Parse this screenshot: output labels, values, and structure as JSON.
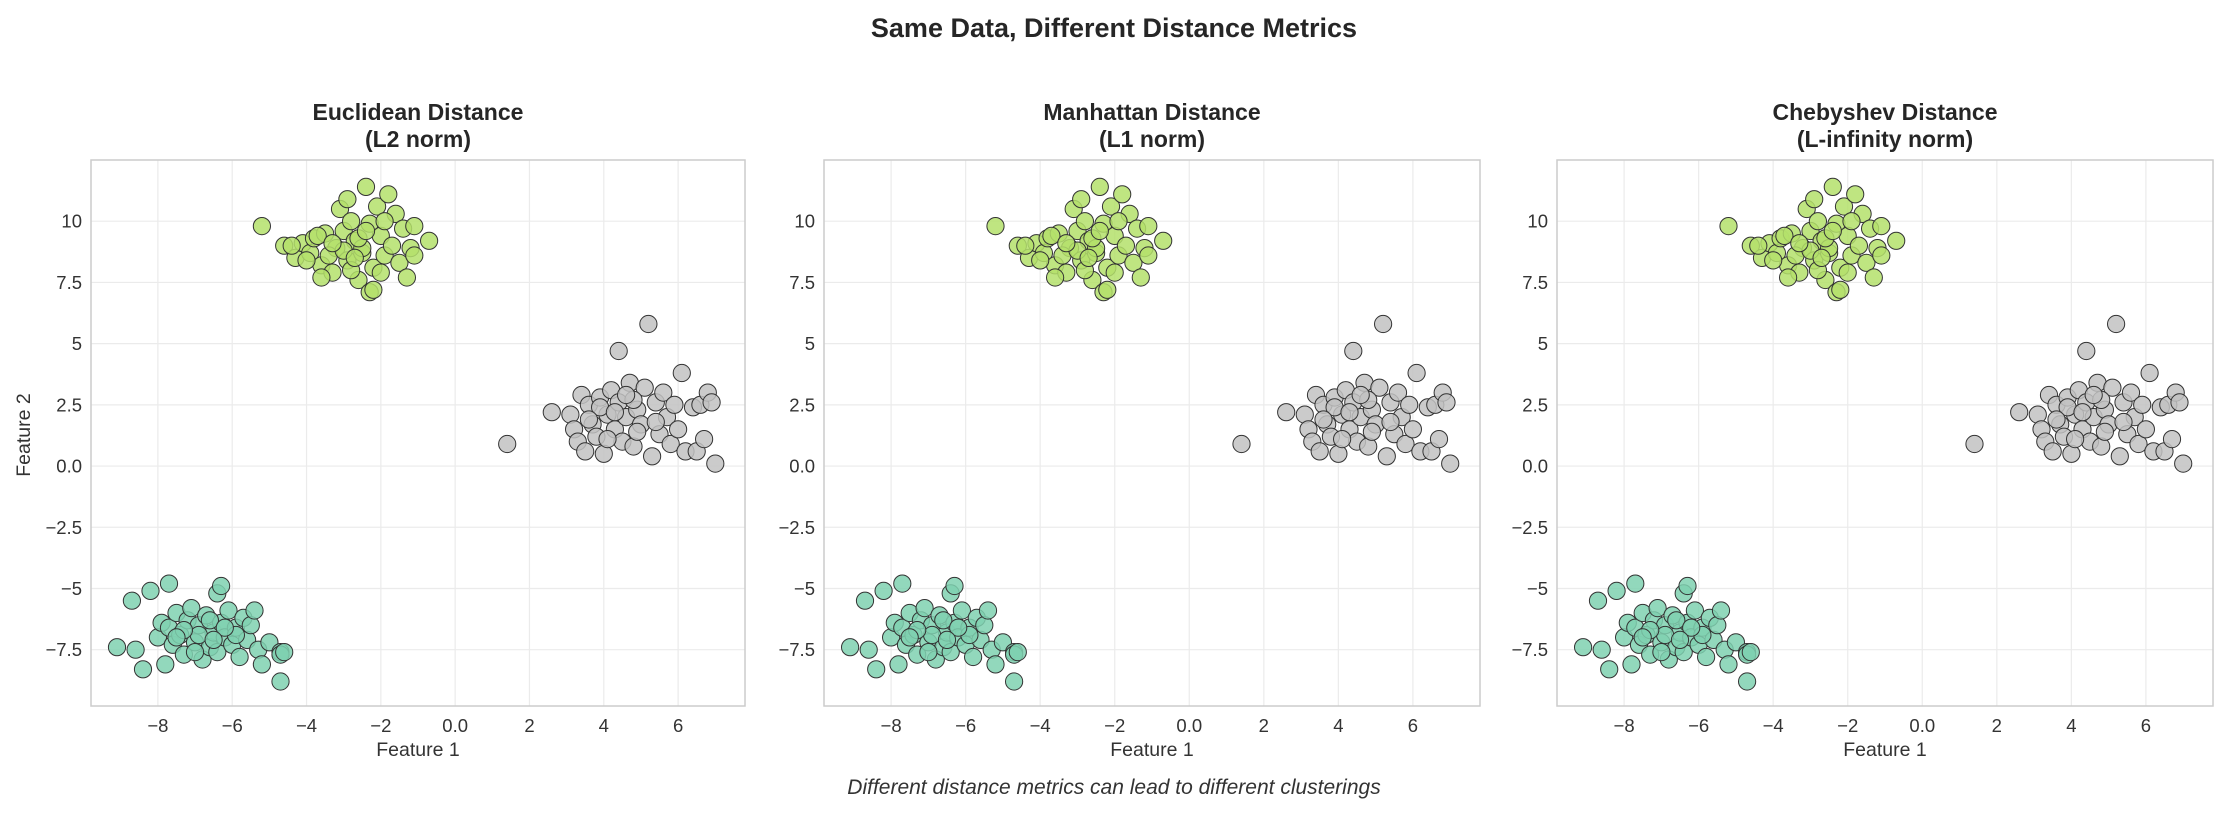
{
  "figure": {
    "title": "Same Data, Different Distance Metrics",
    "caption": "Different distance metrics can lead to different clusterings"
  },
  "chart_data": [
    {
      "type": "scatter",
      "title_line1": "Euclidean Distance",
      "title_line2": "(L2 norm)",
      "xlabel": "Feature 1",
      "ylabel": "Feature 2",
      "xlim": [
        -9.8,
        7.8
      ],
      "ylim": [
        -9.8,
        12.5
      ],
      "xticks": [
        -8,
        -6,
        -4,
        -2,
        0,
        2,
        4,
        6
      ],
      "yticks": [
        -7.5,
        -5.0,
        -2.5,
        0.0,
        2.5,
        5.0,
        7.5,
        10.0
      ],
      "grid": true
    },
    {
      "type": "scatter",
      "title_line1": "Manhattan Distance",
      "title_line2": "(L1 norm)",
      "xlabel": "Feature 1",
      "ylabel": "",
      "xlim": [
        -9.8,
        7.8
      ],
      "ylim": [
        -9.8,
        12.5
      ],
      "xticks": [
        -8,
        -6,
        -4,
        -2,
        0,
        2,
        4,
        6
      ],
      "yticks": [
        -7.5,
        -5.0,
        -2.5,
        0.0,
        2.5,
        5.0,
        7.5,
        10.0
      ],
      "grid": true
    },
    {
      "type": "scatter",
      "title_line1": "Chebyshev Distance",
      "title_line2": "(L-infinity norm)",
      "xlabel": "Feature 1",
      "ylabel": "",
      "xlim": [
        -9.8,
        7.8
      ],
      "ylim": [
        -9.8,
        12.5
      ],
      "xticks": [
        -8,
        -6,
        -4,
        -2,
        0,
        2,
        4,
        6
      ],
      "yticks": [
        -7.5,
        -5.0,
        -2.5,
        0.0,
        2.5,
        5.0,
        7.5,
        10.0
      ],
      "grid": true
    }
  ],
  "clusters": [
    {
      "name": "cluster-top-left",
      "color": "#b4e06b",
      "points": [
        [
          -5.2,
          9.8
        ],
        [
          -4.6,
          9.0
        ],
        [
          -4.3,
          8.5
        ],
        [
          -4.1,
          9.1
        ],
        [
          -3.9,
          8.7
        ],
        [
          -3.8,
          9.3
        ],
        [
          -3.6,
          8.2
        ],
        [
          -3.5,
          9.5
        ],
        [
          -3.3,
          7.9
        ],
        [
          -3.2,
          8.9
        ],
        [
          -3.1,
          10.5
        ],
        [
          -3.0,
          9.6
        ],
        [
          -2.9,
          8.4
        ],
        [
          -2.8,
          10.0
        ],
        [
          -2.7,
          9.2
        ],
        [
          -2.6,
          7.6
        ],
        [
          -2.5,
          8.7
        ],
        [
          -2.4,
          11.4
        ],
        [
          -2.3,
          9.9
        ],
        [
          -2.2,
          8.1
        ],
        [
          -2.1,
          10.6
        ],
        [
          -2.0,
          9.4
        ],
        [
          -1.9,
          8.6
        ],
        [
          -1.8,
          11.1
        ],
        [
          -1.7,
          9.0
        ],
        [
          -1.6,
          10.3
        ],
        [
          -1.5,
          8.3
        ],
        [
          -1.4,
          9.7
        ],
        [
          -1.3,
          7.7
        ],
        [
          -1.2,
          8.9
        ],
        [
          -1.1,
          9.8
        ],
        [
          -0.7,
          9.2
        ],
        [
          -2.3,
          7.1
        ],
        [
          -2.2,
          7.2
        ],
        [
          -2.5,
          8.9
        ],
        [
          -3.4,
          8.6
        ],
        [
          -2.9,
          10.9
        ],
        [
          -3.7,
          9.4
        ],
        [
          -1.1,
          8.6
        ],
        [
          -2.6,
          9.3
        ],
        [
          -3.0,
          8.8
        ],
        [
          -3.6,
          7.7
        ],
        [
          -2.0,
          7.9
        ],
        [
          -4.0,
          8.4
        ],
        [
          -2.8,
          8.0
        ],
        [
          -3.3,
          9.1
        ],
        [
          -2.4,
          9.6
        ],
        [
          -1.9,
          10.0
        ],
        [
          -4.4,
          9.0
        ],
        [
          -2.7,
          8.5
        ]
      ]
    },
    {
      "name": "cluster-right",
      "color": "#c2c2c2",
      "points": [
        [
          1.4,
          0.9
        ],
        [
          2.6,
          2.2
        ],
        [
          3.1,
          2.1
        ],
        [
          3.2,
          1.5
        ],
        [
          3.3,
          1.0
        ],
        [
          3.4,
          2.9
        ],
        [
          3.5,
          0.6
        ],
        [
          3.6,
          2.5
        ],
        [
          3.7,
          1.7
        ],
        [
          3.8,
          1.2
        ],
        [
          3.9,
          2.8
        ],
        [
          4.0,
          0.5
        ],
        [
          4.1,
          2.1
        ],
        [
          4.2,
          3.1
        ],
        [
          4.3,
          1.5
        ],
        [
          4.4,
          2.6
        ],
        [
          4.4,
          4.7
        ],
        [
          4.5,
          1.0
        ],
        [
          4.6,
          2.0
        ],
        [
          4.7,
          3.4
        ],
        [
          4.8,
          0.8
        ],
        [
          4.9,
          2.3
        ],
        [
          5.0,
          1.7
        ],
        [
          5.1,
          3.2
        ],
        [
          5.2,
          5.8
        ],
        [
          5.3,
          0.4
        ],
        [
          5.4,
          2.6
        ],
        [
          5.5,
          1.3
        ],
        [
          5.6,
          3.0
        ],
        [
          5.7,
          2.0
        ],
        [
          5.8,
          0.9
        ],
        [
          5.9,
          2.5
        ],
        [
          6.0,
          1.5
        ],
        [
          6.1,
          3.8
        ],
        [
          6.2,
          0.6
        ],
        [
          6.4,
          2.4
        ],
        [
          6.5,
          0.6
        ],
        [
          6.6,
          2.5
        ],
        [
          6.7,
          1.1
        ],
        [
          6.8,
          3.0
        ],
        [
          6.9,
          2.6
        ],
        [
          7.0,
          0.1
        ],
        [
          3.9,
          2.4
        ],
        [
          4.3,
          2.2
        ],
        [
          4.8,
          2.7
        ],
        [
          5.4,
          1.8
        ],
        [
          3.6,
          1.9
        ],
        [
          4.1,
          1.1
        ],
        [
          4.9,
          1.4
        ],
        [
          4.6,
          2.9
        ]
      ]
    },
    {
      "name": "cluster-bottom-left",
      "color": "#7fd1b0",
      "points": [
        [
          -9.1,
          -7.4
        ],
        [
          -8.7,
          -5.5
        ],
        [
          -8.6,
          -7.5
        ],
        [
          -8.4,
          -8.3
        ],
        [
          -8.2,
          -5.1
        ],
        [
          -8.0,
          -7.0
        ],
        [
          -7.9,
          -6.4
        ],
        [
          -7.8,
          -8.1
        ],
        [
          -7.7,
          -4.8
        ],
        [
          -7.7,
          -6.6
        ],
        [
          -7.6,
          -7.3
        ],
        [
          -7.5,
          -6.0
        ],
        [
          -7.4,
          -6.9
        ],
        [
          -7.3,
          -7.7
        ],
        [
          -7.2,
          -6.3
        ],
        [
          -7.1,
          -5.8
        ],
        [
          -7.0,
          -7.2
        ],
        [
          -6.9,
          -6.5
        ],
        [
          -6.8,
          -7.9
        ],
        [
          -6.7,
          -6.1
        ],
        [
          -6.6,
          -7.4
        ],
        [
          -6.5,
          -6.8
        ],
        [
          -6.4,
          -5.2
        ],
        [
          -6.4,
          -7.6
        ],
        [
          -6.3,
          -6.4
        ],
        [
          -6.2,
          -7.0
        ],
        [
          -6.1,
          -5.9
        ],
        [
          -6.0,
          -7.3
        ],
        [
          -5.9,
          -6.6
        ],
        [
          -5.8,
          -7.8
        ],
        [
          -5.7,
          -6.2
        ],
        [
          -5.6,
          -7.1
        ],
        [
          -5.5,
          -6.5
        ],
        [
          -5.4,
          -5.9
        ],
        [
          -5.3,
          -7.5
        ],
        [
          -5.2,
          -8.1
        ],
        [
          -5.0,
          -7.2
        ],
        [
          -4.7,
          -7.6
        ],
        [
          -4.7,
          -7.7
        ],
        [
          -4.7,
          -8.8
        ],
        [
          -4.6,
          -7.6
        ],
        [
          -6.3,
          -4.9
        ],
        [
          -6.9,
          -6.9
        ],
        [
          -7.3,
          -6.7
        ],
        [
          -6.6,
          -6.3
        ],
        [
          -5.9,
          -6.9
        ],
        [
          -6.2,
          -6.6
        ],
        [
          -7.0,
          -7.6
        ],
        [
          -6.5,
          -7.1
        ],
        [
          -7.5,
          -7.0
        ]
      ]
    }
  ]
}
